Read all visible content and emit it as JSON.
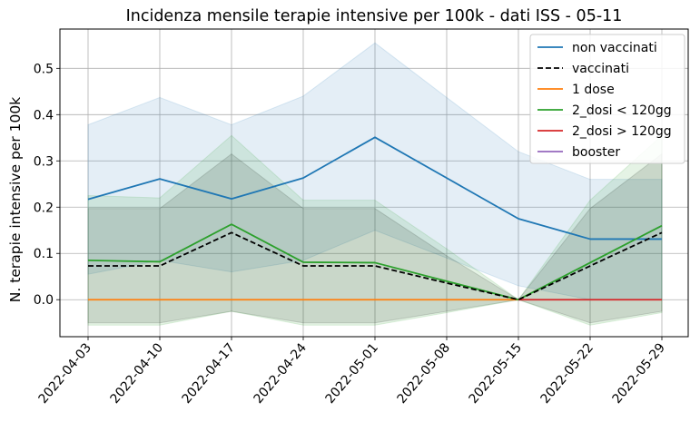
{
  "chart_data": {
    "type": "line",
    "title": "Incidenza mensile terapie intensive per 100k - dati ISS - 05-11",
    "xlabel": "",
    "ylabel": "N. terapie intensive per 100k",
    "x": [
      "2022-04-03",
      "2022-04-10",
      "2022-04-17",
      "2022-04-24",
      "2022-05-01",
      "2022-05-08",
      "2022-05-15",
      "2022-05-22",
      "2022-05-29"
    ],
    "ylim": [
      -0.08,
      0.585
    ],
    "yticks": [
      0.0,
      0.1,
      0.2,
      0.3,
      0.4,
      0.5
    ],
    "ytick_labels": [
      "0.0",
      "0.1",
      "0.2",
      "0.3",
      "0.4",
      "0.5"
    ],
    "grid": true,
    "legend_position": "top-right",
    "series": [
      {
        "name": "non vaccinati",
        "color": "#1f77b4",
        "style": "solid",
        "values": [
          0.217,
          0.261,
          0.218,
          0.263,
          0.351,
          0.263,
          0.175,
          0.131,
          0.131
        ],
        "band_low": [
          0.055,
          0.085,
          0.06,
          0.085,
          0.15,
          0.09,
          0.03,
          0.0,
          0.0
        ],
        "band_high": [
          0.378,
          0.437,
          0.378,
          0.44,
          0.555,
          0.437,
          0.32,
          0.26,
          0.26
        ]
      },
      {
        "name": "vaccinati",
        "color": "#000000",
        "style": "dashed",
        "values": [
          0.073,
          0.073,
          0.145,
          0.073,
          0.073,
          0.036,
          0.0,
          0.073,
          0.145
        ],
        "band_low": [
          -0.05,
          -0.05,
          -0.025,
          -0.05,
          -0.05,
          -0.025,
          0.0,
          -0.05,
          -0.025
        ],
        "band_high": [
          0.197,
          0.197,
          0.315,
          0.197,
          0.197,
          0.095,
          0.0,
          0.197,
          0.315
        ]
      },
      {
        "name": "1 dose",
        "color": "#ff7f0e",
        "style": "solid",
        "values": [
          0,
          0,
          0,
          0,
          0,
          0,
          0,
          null,
          null
        ]
      },
      {
        "name": "2_dosi < 120gg",
        "color": "#2ca02c",
        "style": "solid",
        "values": [
          0.085,
          0.082,
          0.163,
          0.081,
          0.08,
          0.04,
          0.0,
          0.08,
          0.16
        ],
        "band_low": [
          -0.055,
          -0.055,
          -0.025,
          -0.055,
          -0.055,
          -0.028,
          0.0,
          -0.055,
          -0.028
        ],
        "band_high": [
          0.225,
          0.22,
          0.355,
          0.215,
          0.215,
          0.11,
          0.0,
          0.215,
          0.355
        ]
      },
      {
        "name": "2_dosi > 120gg",
        "color": "#d62728",
        "style": "solid",
        "values": [
          null,
          null,
          null,
          null,
          null,
          null,
          0,
          0,
          0
        ]
      },
      {
        "name": "booster",
        "color": "#9467bd",
        "style": "solid",
        "values": [
          null,
          null,
          null,
          null,
          null,
          null,
          null,
          null,
          null
        ]
      }
    ]
  }
}
